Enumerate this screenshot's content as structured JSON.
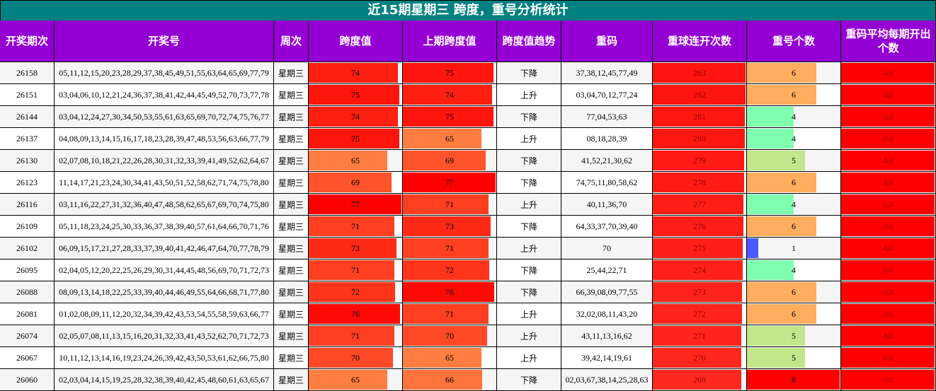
{
  "title": "近15期星期三 跨度，重号分析统计",
  "headers": [
    "开奖期次",
    "开奖号",
    "周次",
    "跨度值",
    "上期跨度值",
    "跨度值趋势",
    "重码",
    "重球连开次数",
    "重号个数",
    "重码平均每期开出个数"
  ],
  "rows": [
    [
      26158,
      "05,11,12,15,20,23,28,29,37,38,45,49,51,55,63,64,65,69,77,79",
      "星期三",
      74,
      75,
      "下降",
      "37,38,12,45,77,49",
      283,
      6,
      4.8
    ],
    [
      26151,
      "03,04,06,10,12,21,24,36,37,38,41,42,44,45,49,52,70,73,77,78",
      "星期三",
      75,
      74,
      "上升",
      "03,04,70,12,77,24",
      282,
      6,
      4.8
    ],
    [
      26144,
      "03,04,12,24,27,30,34,50,53,55,61,63,65,69,70,72,74,75,76,77",
      "星期三",
      74,
      75,
      "下降",
      "77,04,53,63",
      281,
      4,
      4.8
    ],
    [
      26137,
      "04,08,09,13,14,15,16,17,18,23,28,39,47,48,53,56,63,66,77,79",
      "星期三",
      75,
      65,
      "上升",
      "08,18,28,39",
      280,
      4,
      4.8
    ],
    [
      26130,
      "02,07,08,10,18,21,22,26,28,30,31,32,33,39,41,49,52,62,64,67",
      "星期三",
      65,
      69,
      "下降",
      "41,52,21,30,62",
      279,
      5,
      4.8
    ],
    [
      26123,
      "11,14,17,21,23,24,30,34,41,43,50,51,52,58,62,71,74,75,78,80",
      "星期三",
      69,
      77,
      "下降",
      "74,75,11,80,58,62",
      278,
      6,
      4.8
    ],
    [
      26116,
      "03,11,16,22,27,31,32,36,40,47,48,58,62,65,67,69,70,74,75,80",
      "星期三",
      77,
      71,
      "上升",
      "40,11,36,70",
      277,
      4,
      4.8
    ],
    [
      26109,
      "05,11,18,23,24,25,30,33,36,37,38,39,40,57,61,64,66,70,71,76",
      "星期三",
      71,
      73,
      "下降",
      "64,33,37,70,39,40",
      276,
      6,
      4.8
    ],
    [
      26102,
      "06,09,15,17,21,27,28,33,37,39,40,41,42,46,47,64,70,77,78,79",
      "星期三",
      73,
      71,
      "上升",
      70,
      275,
      1,
      4.8
    ],
    [
      26095,
      "02,04,05,12,20,22,25,26,29,30,31,44,45,48,56,69,70,71,72,73",
      "星期三",
      71,
      72,
      "下降",
      "25,44,22,71",
      274,
      4,
      4.8
    ],
    [
      26088,
      "08,09,13,14,18,22,25,33,39,40,44,46,49,55,64,66,68,71,77,80",
      "星期三",
      72,
      76,
      "下降",
      "66,39,08,09,77,55",
      273,
      6,
      4.8
    ],
    [
      26081,
      "01,02,08,09,11,12,20,32,34,39,42,43,53,54,55,58,59,63,66,77",
      "星期三",
      76,
      71,
      "上升",
      "32,02,08,11,43,20",
      272,
      6,
      4.8
    ],
    [
      26074,
      "02,05,07,08,11,13,15,16,20,31,32,33,41,43,52,62,70,71,72,73",
      "星期三",
      71,
      70,
      "上升",
      "43,11,13,16,62",
      271,
      5,
      4.8
    ],
    [
      26067,
      "10,11,12,13,14,16,19,23,24,26,39,42,43,50,53,61,62,66,75,80",
      "星期三",
      70,
      65,
      "上升",
      "39,42,14,19,61",
      270,
      5,
      4.8
    ],
    [
      26060,
      "02,03,04,14,15,19,25,28,32,38,39,40,42,45,48,60,61,63,65,67",
      "星期三",
      65,
      66,
      "下降",
      "02,03,67,38,14,25,28,63",
      269,
      8,
      4.8
    ]
  ]
}
